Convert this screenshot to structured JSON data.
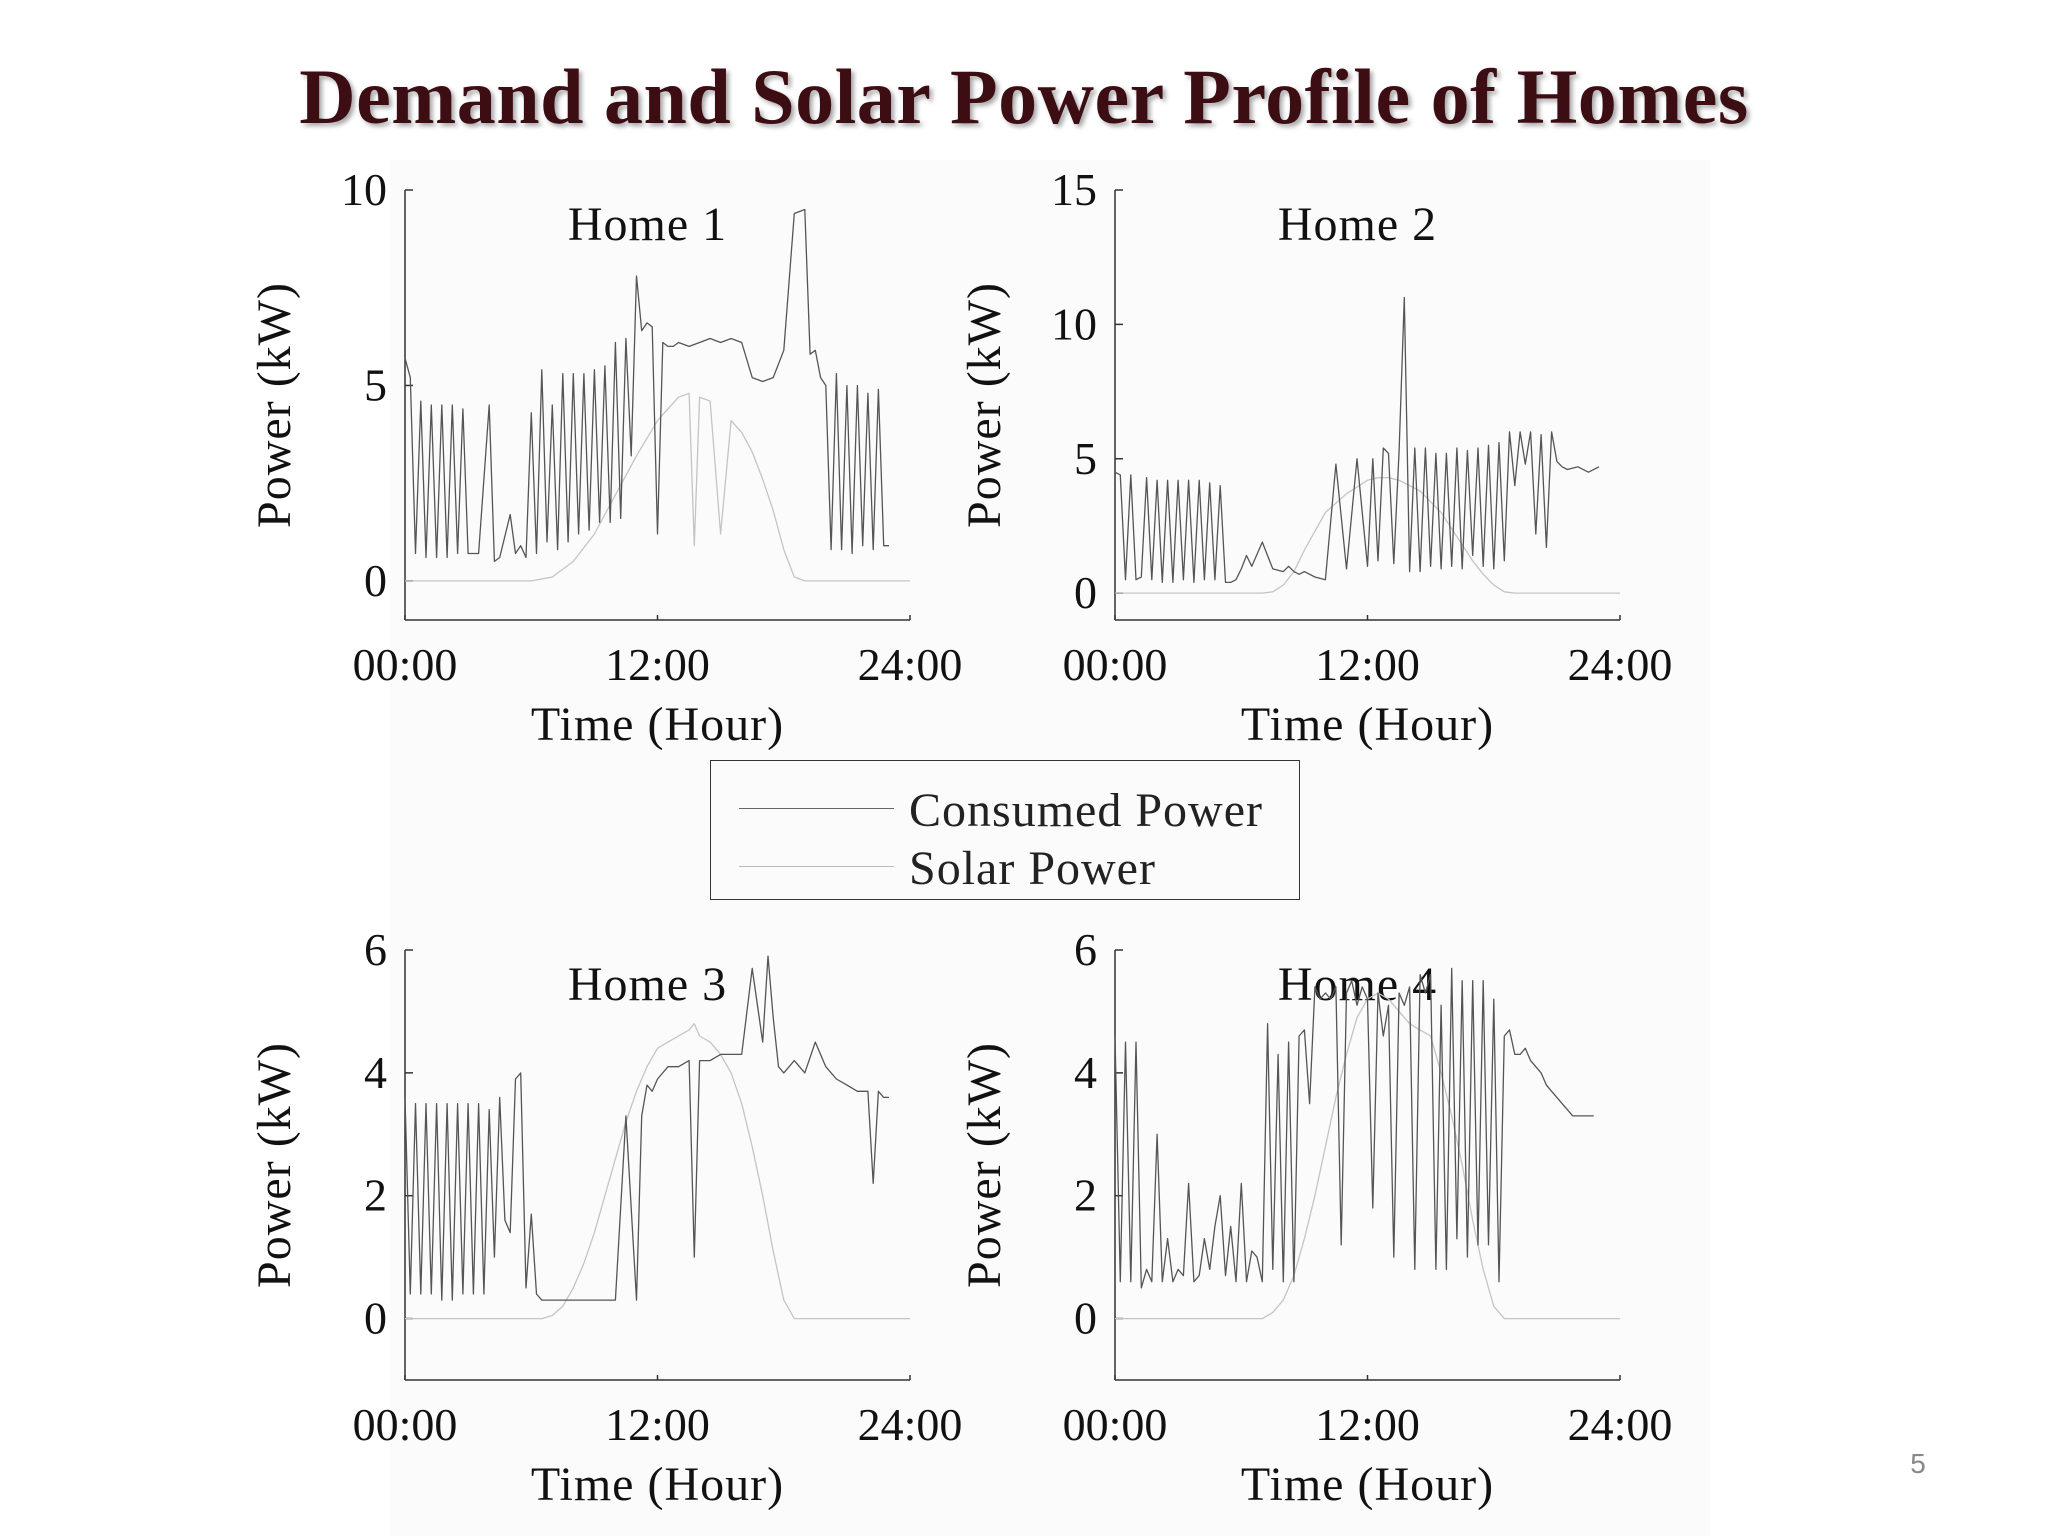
{
  "slide": {
    "title": "Demand and Solar Power Profile of Homes",
    "page_number": "5"
  },
  "legend": {
    "consumed_label": "Consumed Power",
    "solar_label": "Solar Power"
  },
  "colors": {
    "consumed": "#555555",
    "solar": "#c4c4c4",
    "title": "#3d0d14",
    "axis": "#333333"
  },
  "chart_data": [
    {
      "type": "line",
      "title": "Home 1",
      "xlabel": "Time (Hour)",
      "ylabel": "Power (kW)",
      "ylim": [
        -1,
        10
      ],
      "xlim": [
        0,
        24
      ],
      "yticks": [
        0,
        5,
        10
      ],
      "xticks": [
        "00:00",
        "12:00",
        "24:00"
      ],
      "grid": false,
      "series": [
        {
          "name": "Consumed Power",
          "x": [
            0,
            0.25,
            0.5,
            0.75,
            1,
            1.25,
            1.5,
            1.75,
            2,
            2.25,
            2.5,
            2.75,
            3,
            3.5,
            4,
            4.25,
            4.5,
            5,
            5.25,
            5.5,
            5.75,
            6,
            6.25,
            6.5,
            6.75,
            7,
            7.25,
            7.5,
            7.75,
            8,
            8.25,
            8.5,
            8.75,
            9,
            9.25,
            9.5,
            9.75,
            10,
            10.25,
            10.5,
            10.75,
            11,
            11.25,
            11.5,
            11.75,
            12,
            12.25,
            12.5,
            12.75,
            13,
            13.5,
            14,
            14.5,
            15,
            15.5,
            16,
            16.5,
            17,
            17.5,
            18,
            18.5,
            19,
            19.25,
            19.5,
            19.75,
            20,
            20.25,
            20.5,
            20.75,
            21,
            21.25,
            21.5,
            21.75,
            22,
            22.25,
            22.5,
            22.75,
            23
          ],
          "values": [
            5.7,
            5.2,
            0.7,
            4.6,
            0.6,
            4.5,
            0.6,
            4.5,
            0.6,
            4.5,
            0.7,
            4.4,
            0.7,
            0.7,
            4.5,
            0.5,
            0.6,
            1.7,
            0.7,
            0.9,
            0.6,
            4.3,
            0.7,
            5.4,
            1.0,
            4.5,
            0.8,
            5.3,
            1.0,
            5.3,
            1.2,
            5.3,
            1.3,
            5.4,
            1.5,
            5.5,
            1.5,
            6.1,
            1.6,
            6.2,
            3.2,
            7.8,
            6.4,
            6.6,
            6.5,
            1.2,
            6.1,
            6.0,
            6.0,
            6.1,
            6.0,
            6.1,
            6.2,
            6.1,
            6.2,
            6.1,
            5.2,
            5.1,
            5.2,
            5.9,
            9.4,
            9.5,
            5.8,
            5.9,
            5.2,
            5.0,
            0.8,
            5.3,
            0.8,
            5.0,
            0.7,
            5.0,
            0.9,
            4.8,
            0.8,
            4.9,
            0.9,
            0.9
          ]
        },
        {
          "name": "Solar Power",
          "x": [
            0,
            6,
            7,
            8,
            9,
            10,
            11,
            12,
            13,
            13.5,
            13.75,
            14,
            14.5,
            15,
            15.5,
            16,
            16.5,
            17,
            17.5,
            18,
            18.5,
            19,
            24
          ],
          "values": [
            0,
            0,
            0.1,
            0.5,
            1.2,
            2.2,
            3.2,
            4.1,
            4.7,
            4.8,
            0.9,
            4.7,
            4.6,
            1.2,
            4.1,
            3.8,
            3.3,
            2.6,
            1.8,
            0.8,
            0.1,
            0,
            0
          ]
        }
      ]
    },
    {
      "type": "line",
      "title": "Home 2",
      "xlabel": "Time (Hour)",
      "ylabel": "Power (kW)",
      "ylim": [
        -1,
        15
      ],
      "xlim": [
        0,
        24
      ],
      "yticks": [
        0,
        5,
        10,
        15
      ],
      "xticks": [
        "00:00",
        "12:00",
        "24:00"
      ],
      "grid": false,
      "series": [
        {
          "name": "Consumed Power",
          "x": [
            0,
            0.25,
            0.5,
            0.75,
            1,
            1.25,
            1.5,
            1.75,
            2,
            2.25,
            2.5,
            2.75,
            3,
            3.25,
            3.5,
            3.75,
            4,
            4.25,
            4.5,
            4.75,
            5,
            5.25,
            5.5,
            5.75,
            6,
            6.25,
            6.5,
            7,
            7.5,
            8,
            8.25,
            8.5,
            8.75,
            9,
            9.5,
            10,
            10.5,
            11,
            11.5,
            12,
            12.25,
            12.5,
            12.75,
            13,
            13.25,
            13.5,
            13.75,
            14,
            14.25,
            14.5,
            14.75,
            15,
            15.25,
            15.5,
            15.75,
            16,
            16.25,
            16.5,
            16.75,
            17,
            17.25,
            17.5,
            17.75,
            18,
            18.25,
            18.5,
            18.75,
            19,
            19.25,
            19.5,
            19.75,
            20,
            20.25,
            20.5,
            20.75,
            21,
            21.25,
            21.5,
            22,
            22.5,
            23
          ],
          "values": [
            4.5,
            4.4,
            0.5,
            4.4,
            0.5,
            0.6,
            4.3,
            0.5,
            4.2,
            0.4,
            4.2,
            0.4,
            4.2,
            0.5,
            4.2,
            0.4,
            4.2,
            0.5,
            4.1,
            0.5,
            4.0,
            0.4,
            0.4,
            0.5,
            0.9,
            1.4,
            1.0,
            1.9,
            0.9,
            0.8,
            1.0,
            0.8,
            0.7,
            0.8,
            0.6,
            0.5,
            4.8,
            0.9,
            5.0,
            1.0,
            5.0,
            1.2,
            5.4,
            5.2,
            1.1,
            5.3,
            11.0,
            0.8,
            5.4,
            0.8,
            5.4,
            1.0,
            5.2,
            0.9,
            5.2,
            1.0,
            5.4,
            0.9,
            5.3,
            1.4,
            5.4,
            1.0,
            5.5,
            0.9,
            5.6,
            1.2,
            6.0,
            4.0,
            6.0,
            4.8,
            6.0,
            2.2,
            5.9,
            1.7,
            6.0,
            4.9,
            4.7,
            4.6,
            4.7,
            4.5,
            4.7
          ]
        },
        {
          "name": "Solar Power",
          "x": [
            0,
            7,
            7.5,
            8,
            8.5,
            9,
            9.5,
            10,
            11,
            12,
            12.5,
            13,
            13.5,
            14,
            14.5,
            15,
            15.5,
            16,
            16.5,
            17,
            17.5,
            18,
            18.5,
            19,
            24
          ],
          "values": [
            0,
            0,
            0.05,
            0.3,
            0.8,
            1.6,
            2.3,
            3.0,
            3.7,
            4.2,
            4.3,
            4.3,
            4.2,
            4.0,
            3.8,
            3.4,
            3.0,
            2.4,
            1.8,
            1.2,
            0.7,
            0.3,
            0.05,
            0,
            0
          ]
        }
      ]
    },
    {
      "type": "line",
      "title": "Home 3",
      "xlabel": "Time (Hour)",
      "ylabel": "Power (kW)",
      "ylim": [
        -1,
        6
      ],
      "xlim": [
        0,
        24
      ],
      "yticks": [
        0,
        2,
        4,
        6
      ],
      "xticks": [
        "00:00",
        "12:00",
        "24:00"
      ],
      "grid": false,
      "series": [
        {
          "name": "Consumed Power",
          "x": [
            0,
            0.25,
            0.5,
            0.75,
            1,
            1.25,
            1.5,
            1.75,
            2,
            2.25,
            2.5,
            2.75,
            3,
            3.25,
            3.5,
            3.75,
            4,
            4.25,
            4.5,
            4.75,
            5,
            5.25,
            5.5,
            5.75,
            6,
            6.25,
            6.5,
            6.75,
            7,
            7.25,
            7.5,
            8,
            8.5,
            9,
            9.5,
            10,
            10.5,
            11,
            11.25,
            11.5,
            11.75,
            12,
            12.5,
            13,
            13.5,
            13.75,
            14,
            14.5,
            15,
            15.5,
            16,
            16.5,
            17,
            17.25,
            17.5,
            17.75,
            18,
            18.5,
            19,
            19.5,
            20,
            20.5,
            21,
            21.5,
            22,
            22.25,
            22.5,
            22.75,
            23
          ],
          "values": [
            3.6,
            0.4,
            3.5,
            0.4,
            3.5,
            0.4,
            3.5,
            0.3,
            3.5,
            0.3,
            3.5,
            0.4,
            3.5,
            0.4,
            3.5,
            0.4,
            3.4,
            1.0,
            3.6,
            1.6,
            1.4,
            3.9,
            4.0,
            0.5,
            1.7,
            0.4,
            0.3,
            0.3,
            0.3,
            0.3,
            0.3,
            0.3,
            0.3,
            0.3,
            0.3,
            0.3,
            3.3,
            0.3,
            3.3,
            3.8,
            3.7,
            3.9,
            4.1,
            4.1,
            4.2,
            1.0,
            4.2,
            4.2,
            4.3,
            4.3,
            4.3,
            5.7,
            4.5,
            5.9,
            4.9,
            4.1,
            4.0,
            4.2,
            4.0,
            4.5,
            4.1,
            3.9,
            3.8,
            3.7,
            3.7,
            2.2,
            3.7,
            3.6,
            3.6
          ]
        },
        {
          "name": "Solar Power",
          "x": [
            0,
            6.5,
            7,
            7.5,
            8,
            8.5,
            9,
            9.5,
            10,
            10.5,
            11,
            11.5,
            12,
            12.5,
            13,
            13.5,
            13.75,
            14,
            14.5,
            15,
            15.5,
            16,
            16.5,
            17,
            17.5,
            18,
            18.5,
            19,
            24
          ],
          "values": [
            0,
            0,
            0.05,
            0.2,
            0.5,
            0.9,
            1.4,
            2.0,
            2.6,
            3.2,
            3.7,
            4.1,
            4.4,
            4.5,
            4.6,
            4.7,
            4.8,
            4.6,
            4.5,
            4.3,
            4.0,
            3.5,
            2.8,
            2.0,
            1.1,
            0.3,
            0,
            0,
            0
          ]
        }
      ]
    },
    {
      "type": "line",
      "title": "Home 4",
      "xlabel": "Time (Hour)",
      "ylabel": "Power (kW)",
      "ylim": [
        -1,
        6
      ],
      "xlim": [
        0,
        24
      ],
      "yticks": [
        0,
        2,
        4,
        6
      ],
      "xticks": [
        "00:00",
        "12:00",
        "24:00"
      ],
      "grid": false,
      "series": [
        {
          "name": "Consumed Power",
          "x": [
            0,
            0.25,
            0.5,
            0.75,
            1,
            1.25,
            1.5,
            1.75,
            2,
            2.25,
            2.5,
            2.75,
            3,
            3.25,
            3.5,
            3.75,
            4,
            4.25,
            4.5,
            4.75,
            5,
            5.25,
            5.5,
            5.75,
            6,
            6.25,
            6.5,
            6.75,
            7,
            7.25,
            7.5,
            7.75,
            8,
            8.25,
            8.5,
            8.75,
            9,
            9.25,
            9.5,
            9.75,
            10,
            10.25,
            10.5,
            10.75,
            11,
            11.25,
            11.5,
            11.75,
            12,
            12.25,
            12.5,
            12.75,
            13,
            13.25,
            13.5,
            13.75,
            14,
            14.25,
            14.5,
            14.75,
            15,
            15.25,
            15.5,
            15.75,
            16,
            16.25,
            16.5,
            16.75,
            17,
            17.25,
            17.5,
            17.75,
            18,
            18.25,
            18.5,
            18.75,
            19,
            19.25,
            19.5,
            19.75,
            20,
            20.25,
            20.5,
            20.75,
            21,
            21.25,
            21.5,
            21.75,
            22,
            22.25,
            22.5,
            22.75
          ],
          "values": [
            4.6,
            0.6,
            4.5,
            0.6,
            4.5,
            0.5,
            0.8,
            0.6,
            3.0,
            0.6,
            1.3,
            0.6,
            0.8,
            0.7,
            2.2,
            0.6,
            0.7,
            1.3,
            0.8,
            1.5,
            2.0,
            0.7,
            1.5,
            0.6,
            2.2,
            0.6,
            1.1,
            1.0,
            0.6,
            4.8,
            0.8,
            4.3,
            0.6,
            4.5,
            0.6,
            4.6,
            4.7,
            3.5,
            5.4,
            5.2,
            5.3,
            5.2,
            5.4,
            1.2,
            5.3,
            5.5,
            5.1,
            5.4,
            5.2,
            1.8,
            5.3,
            4.6,
            5.1,
            1.0,
            5.3,
            5.1,
            5.4,
            0.8,
            5.6,
            5.3,
            5.6,
            0.8,
            5.1,
            0.8,
            5.7,
            1.3,
            5.5,
            1.0,
            5.5,
            1.2,
            5.5,
            1.2,
            5.2,
            0.6,
            4.6,
            4.7,
            4.3,
            4.3,
            4.4,
            4.2,
            4.1,
            4.0,
            3.8,
            3.7,
            3.6,
            3.5,
            3.4,
            3.3,
            3.3,
            3.3,
            3.3,
            3.3
          ]
        },
        {
          "name": "Solar Power",
          "x": [
            0,
            7,
            7.5,
            8,
            8.5,
            9,
            9.5,
            10,
            10.5,
            11,
            11.5,
            12,
            12.5,
            13,
            13.5,
            14,
            14.5,
            15,
            15.5,
            16,
            16.5,
            17,
            17.5,
            18,
            18.5,
            19,
            24
          ],
          "values": [
            0,
            0,
            0.1,
            0.3,
            0.7,
            1.3,
            2.0,
            2.8,
            3.6,
            4.3,
            4.9,
            5.2,
            5.3,
            5.2,
            5.0,
            4.8,
            4.7,
            4.6,
            4.0,
            3.3,
            2.5,
            1.6,
            0.8,
            0.2,
            0,
            0,
            0
          ]
        }
      ]
    }
  ]
}
